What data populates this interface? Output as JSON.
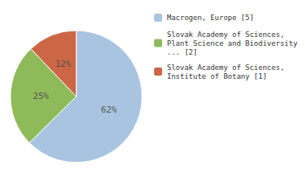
{
  "chart_data": {
    "type": "pie",
    "categories": [
      "Macrogen, Europe [5]",
      "Slovak Academy of Sciences,\nPlant Science and Biodiversity\n... [2]",
      "Slovak Academy of Sciences,\nInstitute of Botany [1]"
    ],
    "values": [
      62,
      25,
      12
    ],
    "value_labels": [
      "62%",
      "25%",
      "12%"
    ],
    "colors": [
      "#a8c4e0",
      "#8fba5a",
      "#cc6644"
    ],
    "data_labels": true,
    "legend": "right"
  }
}
